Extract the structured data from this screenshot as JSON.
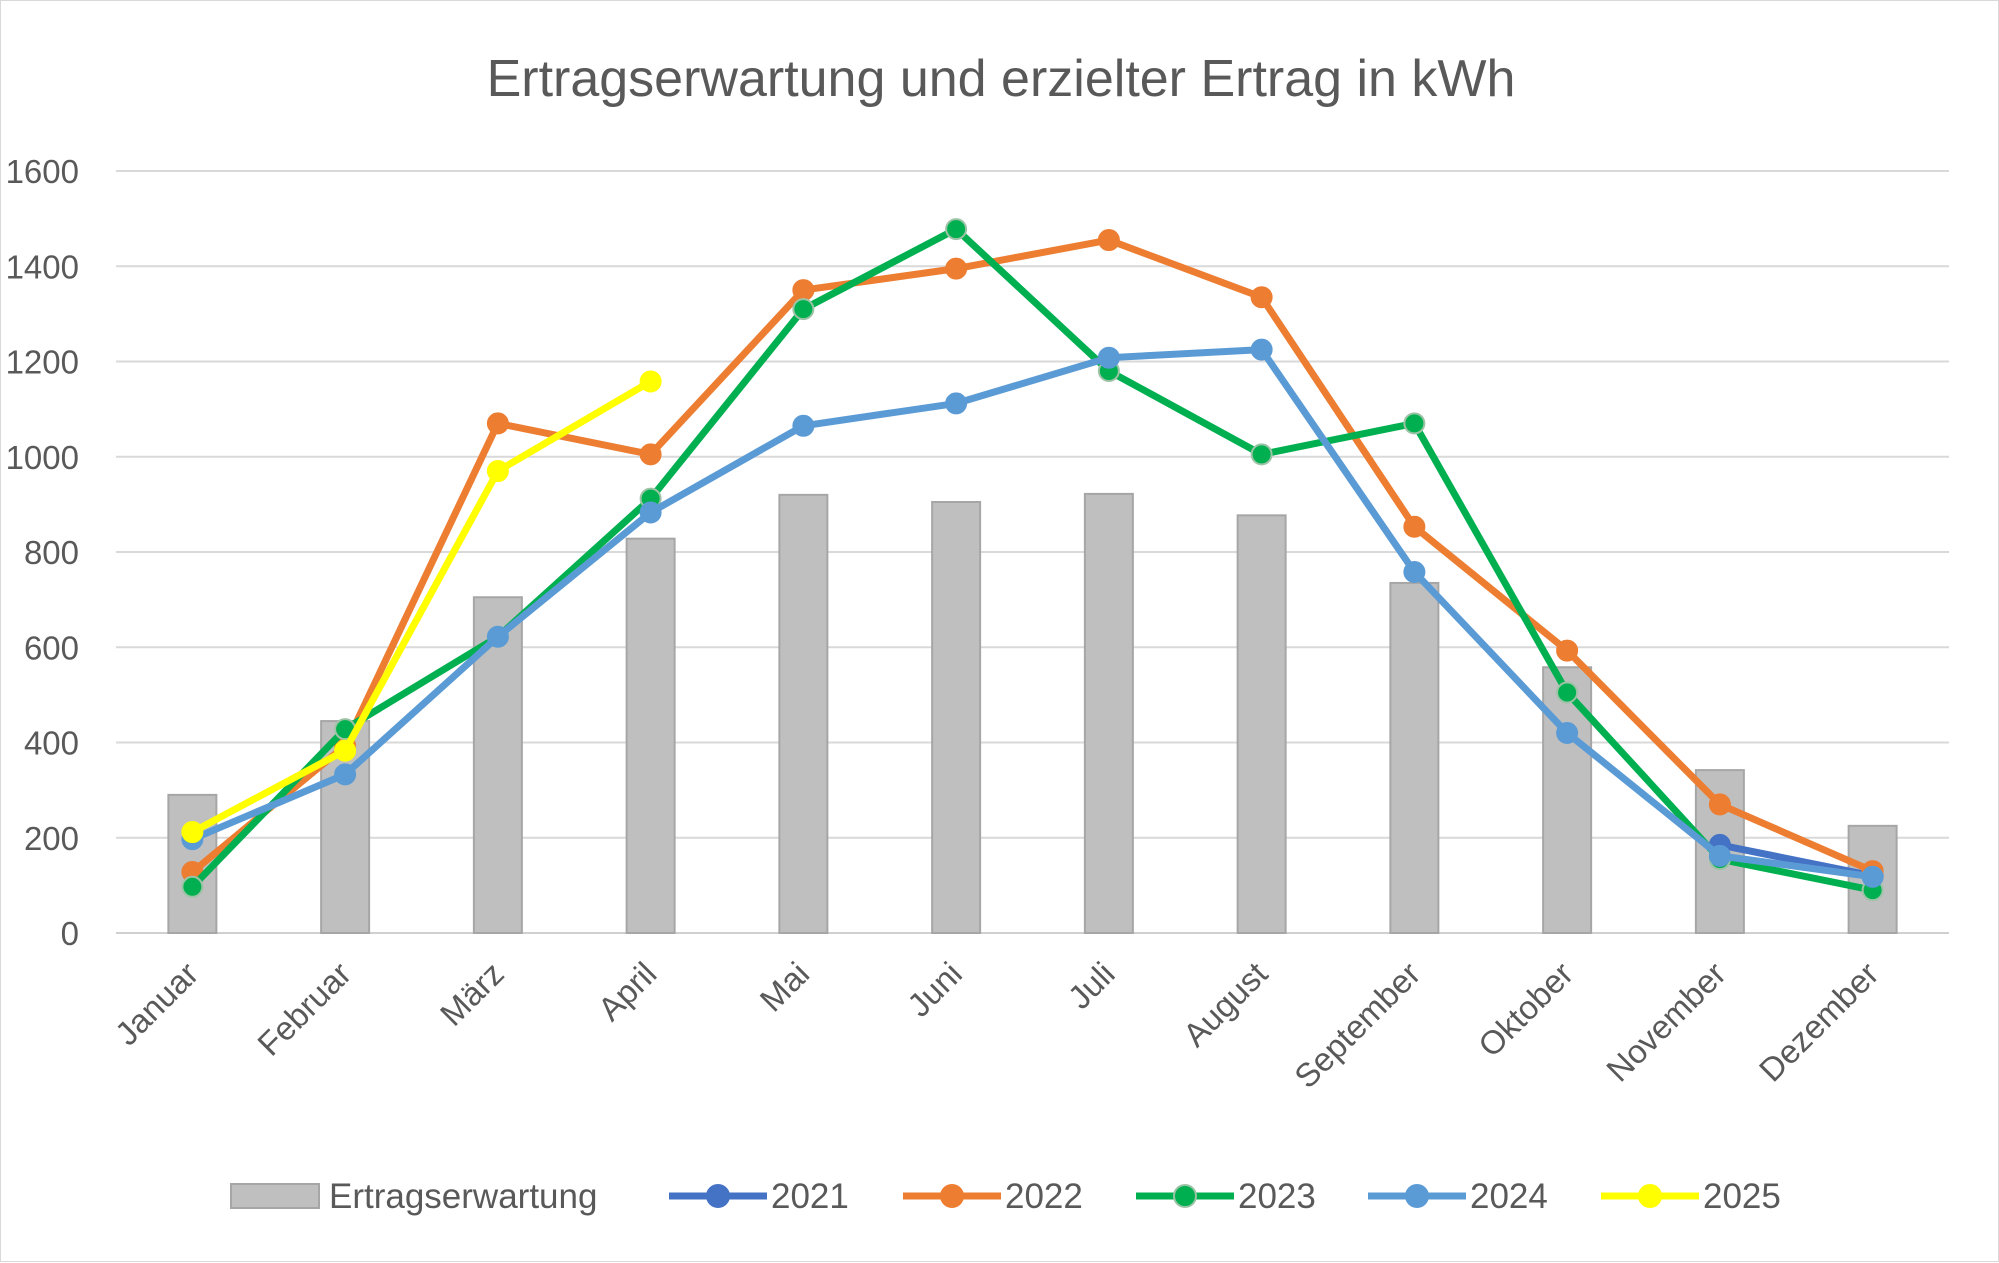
{
  "chart_data": {
    "type": "bar",
    "title": "Ertragserwartung und erzielter Ertrag in kWh",
    "categories": [
      "Januar",
      "Februar",
      "März",
      "April",
      "Mai",
      "Juni",
      "Juli",
      "August",
      "September",
      "Oktober",
      "November",
      "Dezember"
    ],
    "ylim": [
      0,
      1600
    ],
    "yticks": [
      "0",
      "200",
      "400",
      "600",
      "800",
      "1000",
      "1200",
      "1400",
      "1600"
    ],
    "grid": true,
    "legend_position": "bottom",
    "bars": {
      "name": "Ertragserwartung",
      "color": "#bfbfbf",
      "values": [
        290,
        445,
        705,
        828,
        920,
        905,
        922,
        877,
        735,
        558,
        342,
        225
      ]
    },
    "series": [
      {
        "name": "2021",
        "color": "#4472c4",
        "values": [
          null,
          null,
          null,
          null,
          null,
          null,
          null,
          null,
          null,
          null,
          185,
          120
        ]
      },
      {
        "name": "2022",
        "color": "#ed7d31",
        "values": [
          128,
          393,
          1070,
          1005,
          1350,
          1395,
          1455,
          1335,
          853,
          593,
          270,
          130
        ]
      },
      {
        "name": "2023",
        "color": "#00b050",
        "values": [
          97,
          428,
          622,
          912,
          1310,
          1478,
          1180,
          1005,
          1070,
          505,
          155,
          90
        ]
      },
      {
        "name": "2024",
        "color": "#5b9bd5",
        "values": [
          197,
          333,
          622,
          883,
          1065,
          1112,
          1208,
          1225,
          758,
          420,
          162,
          118
        ]
      },
      {
        "name": "2025",
        "color": "#ffff00",
        "values": [
          212,
          383,
          970,
          1158,
          null,
          null,
          null,
          null,
          null,
          null,
          null,
          null
        ]
      }
    ]
  }
}
